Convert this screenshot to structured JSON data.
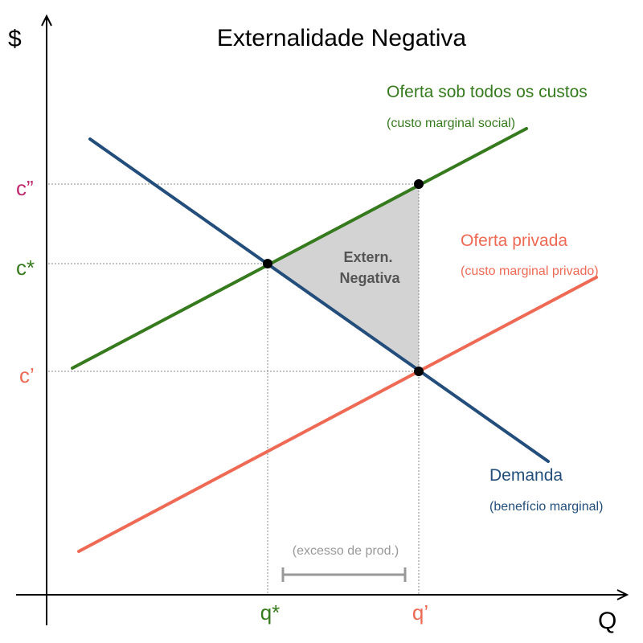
{
  "title": "Externalidade Negativa",
  "axes": {
    "y_label": "$",
    "x_label": "Q"
  },
  "colors": {
    "social": "#367a1e",
    "private": "#ee6a55",
    "demand": "#234e7c",
    "c_double_prime": "#c0286e",
    "region": "#d3d3d3",
    "excess": "#999999",
    "guide": "#888888"
  },
  "curves": {
    "social": {
      "name": "Oferta sob todos os custos",
      "sub": "(custo marginal social)"
    },
    "private": {
      "name": "Oferta privada",
      "sub": "(custo marginal privado)"
    },
    "demand": {
      "name": "Demanda",
      "sub": "(benefício marginal)"
    }
  },
  "prices": {
    "c_double_prime": "c”",
    "c_star": "c*",
    "c_prime": "c’"
  },
  "quantities": {
    "q_star": "q*",
    "q_prime": "q’"
  },
  "region": {
    "line1": "Extern.",
    "line2": "Negativa"
  },
  "excess": {
    "label": "(excesso de prod.)"
  }
}
